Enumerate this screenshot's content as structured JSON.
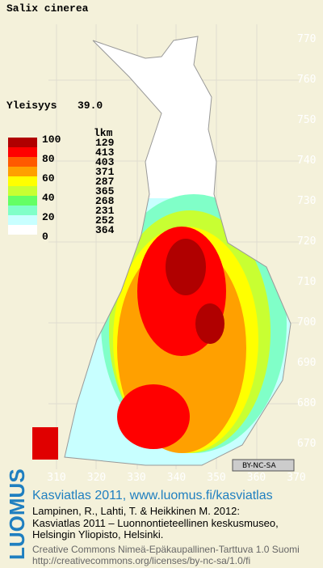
{
  "header": {
    "title": "Salix cinerea",
    "frequency_label": "Yleisyys",
    "frequency_value": "39.0"
  },
  "legend": {
    "scale": [
      "100",
      "80",
      "60",
      "40",
      "20",
      "0"
    ],
    "count_header": "lkm",
    "colors": [
      "#b00000",
      "#ff0000",
      "#ff5a00",
      "#ffa000",
      "#ffff00",
      "#c8ff32",
      "#64ff64",
      "#80ffc8",
      "#c8ffff",
      "#ffffff"
    ],
    "counts": [
      "129",
      "413",
      "403",
      "371",
      "287",
      "365",
      "268",
      "231",
      "252",
      "364"
    ]
  },
  "grid": {
    "y_labels": [
      "770",
      "760",
      "750",
      "740",
      "730",
      "720",
      "710",
      "700",
      "690",
      "680",
      "670"
    ],
    "x_labels": [
      "310",
      "320",
      "330",
      "340",
      "350",
      "360",
      "370"
    ]
  },
  "badge": {
    "text": "BY-NC-SA"
  },
  "footer": {
    "brand": "LUOMUS",
    "link": "Kasviatlas 2011, www.luomus.fi/kasviatlas",
    "citation": [
      "Lampinen, R., Lahti, T. & Heikkinen M. 2012:",
      "Kasviatlas 2011 – Luonnontieteellinen keskusmuseo,",
      "Helsingin Yliopisto, Helsinki."
    ],
    "license": [
      "Creative Commons Nimeä-Epäkaupallinen-Tarttuva 1.0 Suomi",
      "http://creativecommons.org/licenses/by-nc-sa/1.0/fi"
    ]
  }
}
